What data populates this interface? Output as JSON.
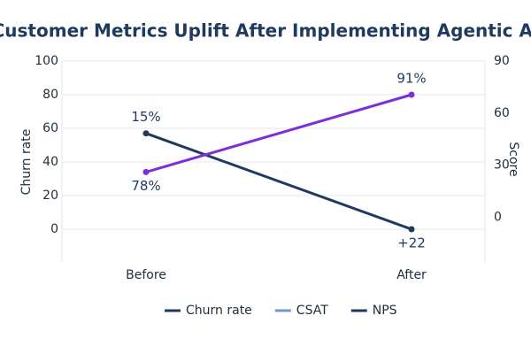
{
  "chart_data": {
    "type": "line",
    "title": "Customer Metrics Uplift After Implementing Agentic AI",
    "y_label": "Churn rate",
    "y2_label": "Score",
    "categories": [
      "Before",
      "After"
    ],
    "series": [
      {
        "name": "Churn rate",
        "color": "#1f3a5f",
        "values": [
          57,
          0
        ],
        "annotations": [
          "15%",
          "+22"
        ]
      },
      {
        "name": "CSAT",
        "color": "#6a9bd1",
        "line_color": "#7b2fd8",
        "values": [
          34,
          80
        ],
        "annotations": [
          "78%",
          "91%"
        ]
      },
      {
        "name": "NPS",
        "color": "#1f3a5f",
        "values": [
          null,
          null
        ]
      }
    ],
    "ylim": [
      -20,
      100
    ],
    "yticks": [
      0,
      20,
      40,
      60,
      80,
      100
    ],
    "y2lim": [
      -26.4,
      90
    ],
    "y2ticks": [
      0,
      30,
      60,
      90
    ],
    "grid": true,
    "legend": "bottom"
  }
}
